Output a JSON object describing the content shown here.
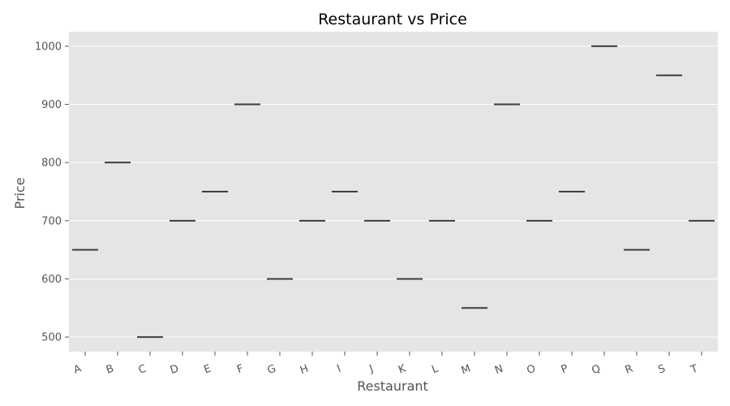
{
  "chart_data": {
    "type": "box",
    "title": "Restaurant vs Price",
    "xlabel": "Restaurant",
    "ylabel": "Price",
    "categories": [
      "A",
      "B",
      "C",
      "D",
      "E",
      "F",
      "G",
      "H",
      "I",
      "J",
      "K",
      "L",
      "M",
      "N",
      "O",
      "P",
      "Q",
      "R",
      "S",
      "T"
    ],
    "values": [
      650,
      800,
      500,
      700,
      750,
      900,
      600,
      700,
      750,
      700,
      600,
      700,
      550,
      900,
      700,
      750,
      1000,
      650,
      950,
      700
    ],
    "yticks": [
      500,
      600,
      700,
      800,
      900,
      1000
    ],
    "ylim": [
      475,
      1025
    ],
    "grid": true,
    "colors": {
      "plot_background": "#e5e5e5",
      "grid": "#ffffff",
      "median": "#3d3d3d",
      "text": "#555555"
    }
  }
}
